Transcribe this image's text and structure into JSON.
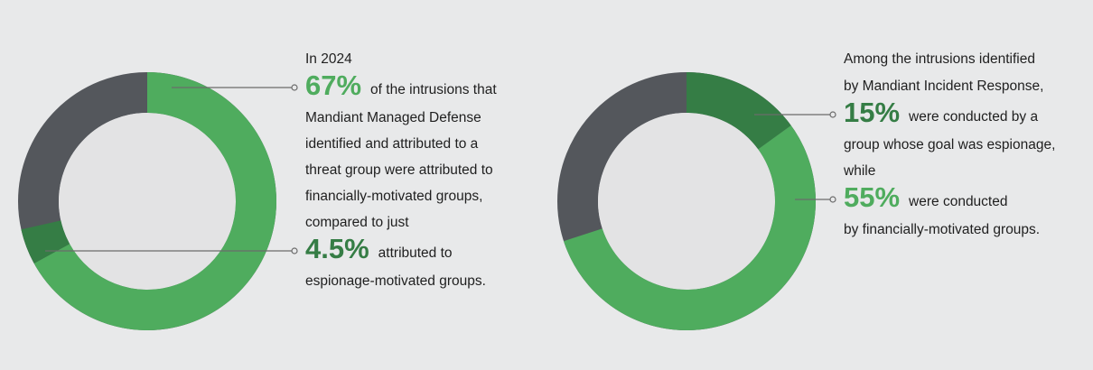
{
  "chart_data": [
    {
      "type": "pie",
      "intro": [
        "In 2024"
      ],
      "values": [
        67,
        4.5
      ],
      "value_labels": [
        "67%",
        "4.5%"
      ],
      "colors": [
        "#4fac5e",
        "#357d45"
      ],
      "captions": [
        [
          "of the intrusions that",
          "Mandiant Managed Defense",
          "identified and attributed to a",
          "threat group were attributed to",
          "financially-motivated groups,",
          "compared to just"
        ],
        [
          "attributed to",
          "espionage-motivated groups."
        ]
      ]
    },
    {
      "type": "pie",
      "intro": [
        "Among the intrusions identified",
        "by Mandiant Incident Response,"
      ],
      "values": [
        15,
        55
      ],
      "value_labels": [
        "15%",
        "55%"
      ],
      "colors": [
        "#357d45",
        "#4fac5e"
      ],
      "captions": [
        [
          "were conducted by a",
          "group whose goal was espionage,",
          "while"
        ],
        [
          "were conducted",
          "by financially-motivated groups."
        ]
      ]
    }
  ]
}
